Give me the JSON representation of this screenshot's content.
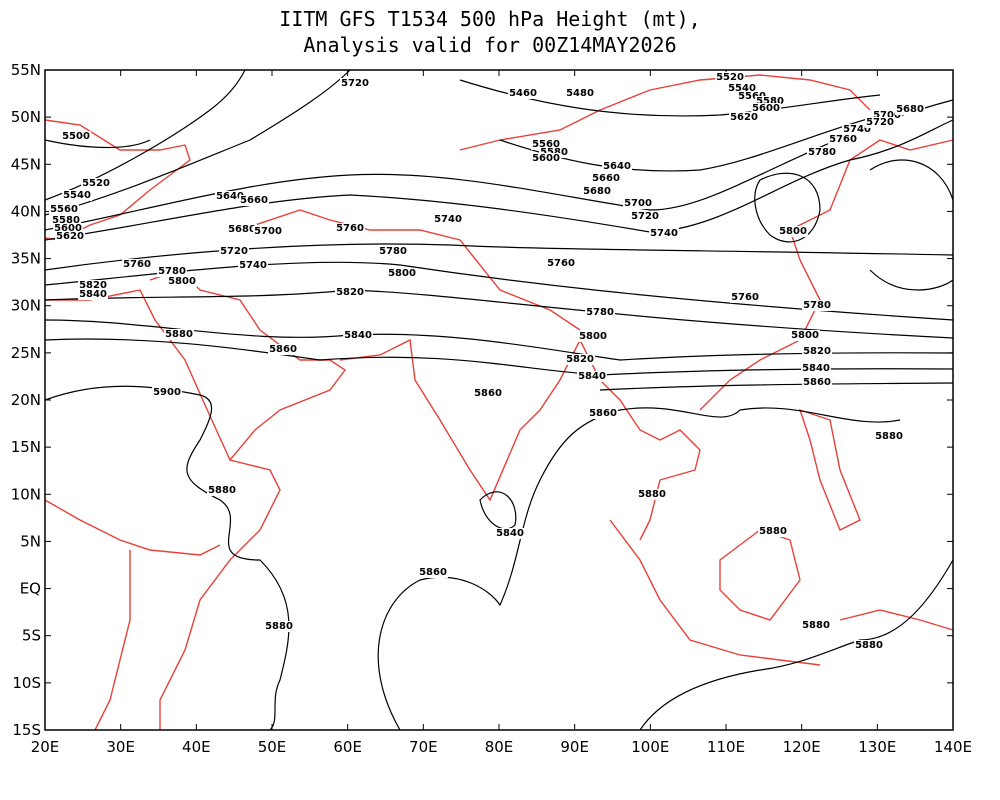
{
  "title": [
    "IITM GFS T1534 500 hPa Height (mt),",
    "Analysis valid for 00Z14MAY2026"
  ],
  "lat_ticks": [
    "55N",
    "50N",
    "45N",
    "40N",
    "35N",
    "30N",
    "25N",
    "20N",
    "15N",
    "10N",
    "5N",
    "EQ",
    "5S",
    "10S",
    "15S"
  ],
  "lon_ticks": [
    "20E",
    "30E",
    "40E",
    "50E",
    "60E",
    "70E",
    "80E",
    "90E",
    "100E",
    "110E",
    "120E",
    "130E",
    "140E"
  ],
  "contour_labels": [
    "5720",
    "5520",
    "5540",
    "5560",
    "5580",
    "5600",
    "5620",
    "5460",
    "5480",
    "5700",
    "5680",
    "5740",
    "5720",
    "5760",
    "5780",
    "5500",
    "5520",
    "5540",
    "5560",
    "5580",
    "5600",
    "5620",
    "5640",
    "5660",
    "5680",
    "5700",
    "5720",
    "5740",
    "5760",
    "5780",
    "5800",
    "5820",
    "5760",
    "5780",
    "5800",
    "5820",
    "5840",
    "5880",
    "5860",
    "5840",
    "5900",
    "5880",
    "5860",
    "5840",
    "5860",
    "5880",
    "5560",
    "5580",
    "5600",
    "5640",
    "5660",
    "5680",
    "5700",
    "5720",
    "5740",
    "5740",
    "5760",
    "5760",
    "5780",
    "5780",
    "5800",
    "5800",
    "5820",
    "5820",
    "5840",
    "5840",
    "5860",
    "5860",
    "5880",
    "5880",
    "5880",
    "5880",
    "5880",
    "5800"
  ]
}
